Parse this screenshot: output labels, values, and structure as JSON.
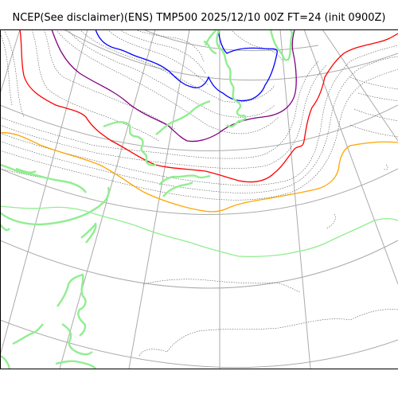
{
  "title": "NCEP(See disclaimer)(ENS) TMP500 2025/12/10 00Z FT=24 (init 0900Z)",
  "colors": {
    "coastline": "#90ee90",
    "contour": "#555555",
    "graticule": "#aaaaaa",
    "highlight_blue": "#0000ff",
    "highlight_purple": "#800080",
    "highlight_red": "#ff0000",
    "highlight_orange": "#ffa500",
    "highlight_green": "#90ee90"
  }
}
